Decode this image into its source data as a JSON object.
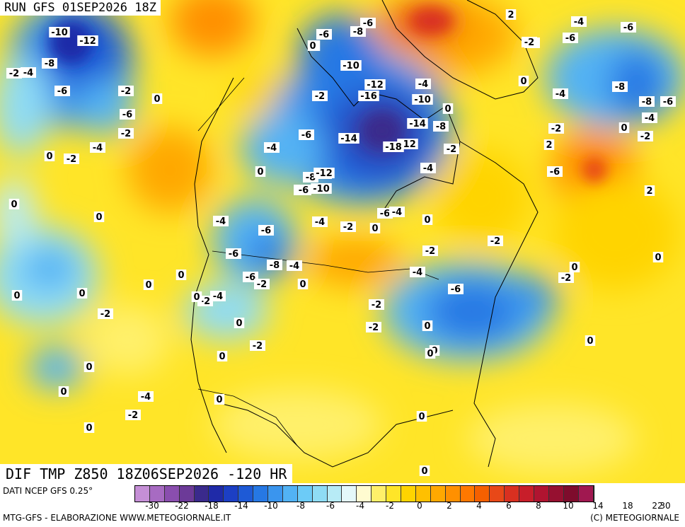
{
  "header": {
    "run_title": "RUN GFS 01SEP2026 18Z",
    "field_title": "DIF TMP Z850 18Z06SEP2026 -120 HR"
  },
  "footer": {
    "source": "DATI NCEP GFS 0.25°",
    "left": "MTG-GFS - ELABORAZIONE WWW.METEOGIORNALE.IT",
    "right": "(C) METEOGIORNALE"
  },
  "colors": {
    "scale": [
      "#c58fd6",
      "#a76bc2",
      "#8a4eae",
      "#6c3a98",
      "#3a2a8c",
      "#1f2aa8",
      "#1c3fc4",
      "#1e5ad6",
      "#2678e4",
      "#3a95ee",
      "#52b2f4",
      "#6ccbf7",
      "#8fdcf5",
      "#b7ebf6",
      "#e4f8fa",
      "#fffbd0",
      "#fff06a",
      "#ffe528",
      "#ffd400",
      "#ffc000",
      "#ffa800",
      "#ff9000",
      "#ff7800",
      "#f56000",
      "#e84818",
      "#d93020",
      "#c81e2a",
      "#b01430",
      "#961030",
      "#7e0c2c",
      "#a01850"
    ]
  },
  "scale": {
    "ticks": [
      "-30",
      "-22",
      "-18",
      "-14",
      "-10",
      "-8",
      "-6",
      "-4",
      "-2",
      "0",
      "2",
      "4",
      "6",
      "8",
      "10",
      "14",
      "18",
      "22",
      "30"
    ]
  },
  "map_labels": [
    "-2",
    "-6",
    "-10",
    "-12",
    "-6",
    "-8",
    "-6",
    "-2",
    "2",
    "0",
    "-4",
    "-2",
    "-4",
    "-6",
    "-8",
    "-6",
    "-10",
    "0",
    "-2",
    "-12",
    "-16",
    "-4",
    "-12",
    "-10",
    "-18",
    "-14",
    "-14",
    "-8",
    "-6",
    "0",
    "-4",
    "0",
    "-2",
    "-8",
    "-4",
    "-2",
    "-6",
    "-6",
    "-8",
    "-12",
    "-6",
    "-10",
    "-2",
    "2",
    "-4",
    "-2",
    "0",
    "-6",
    "-4",
    "-6",
    "-4",
    "-2",
    "0",
    "-6",
    "0",
    "-2",
    "0",
    "-8",
    "-6",
    "-4",
    "2",
    "-4",
    "-2",
    "0",
    "0",
    "0",
    "-4",
    "-6",
    "-6",
    "-2",
    "0",
    "-2",
    "-4",
    "-8",
    "-4",
    "-2",
    "0",
    "0",
    "-6",
    "-2",
    "-4",
    "-6",
    "0",
    "-2",
    "-2",
    "0",
    "0",
    "0",
    "-2",
    "0",
    "0",
    "-2",
    "0",
    "-2",
    "0",
    "0",
    "0",
    "0",
    "0",
    "0",
    "0",
    "-4",
    "-2",
    "0",
    "0",
    "0",
    "0"
  ]
}
